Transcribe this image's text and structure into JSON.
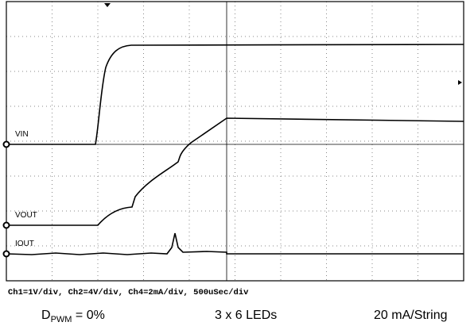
{
  "screen": {
    "traces": [
      {
        "label": "VIN"
      },
      {
        "label": "VOUT"
      },
      {
        "label": "IOUT"
      }
    ],
    "settings": "Ch1=1V/div, Ch2=4V/div, Ch4=2mA/div, 500uSec/div"
  },
  "caption": {
    "duty_symbol": "D",
    "duty_subscript": "PWM",
    "duty_value": " = 0%",
    "leds": "3 x 6 LEDs",
    "current": "20 mA/String"
  }
}
